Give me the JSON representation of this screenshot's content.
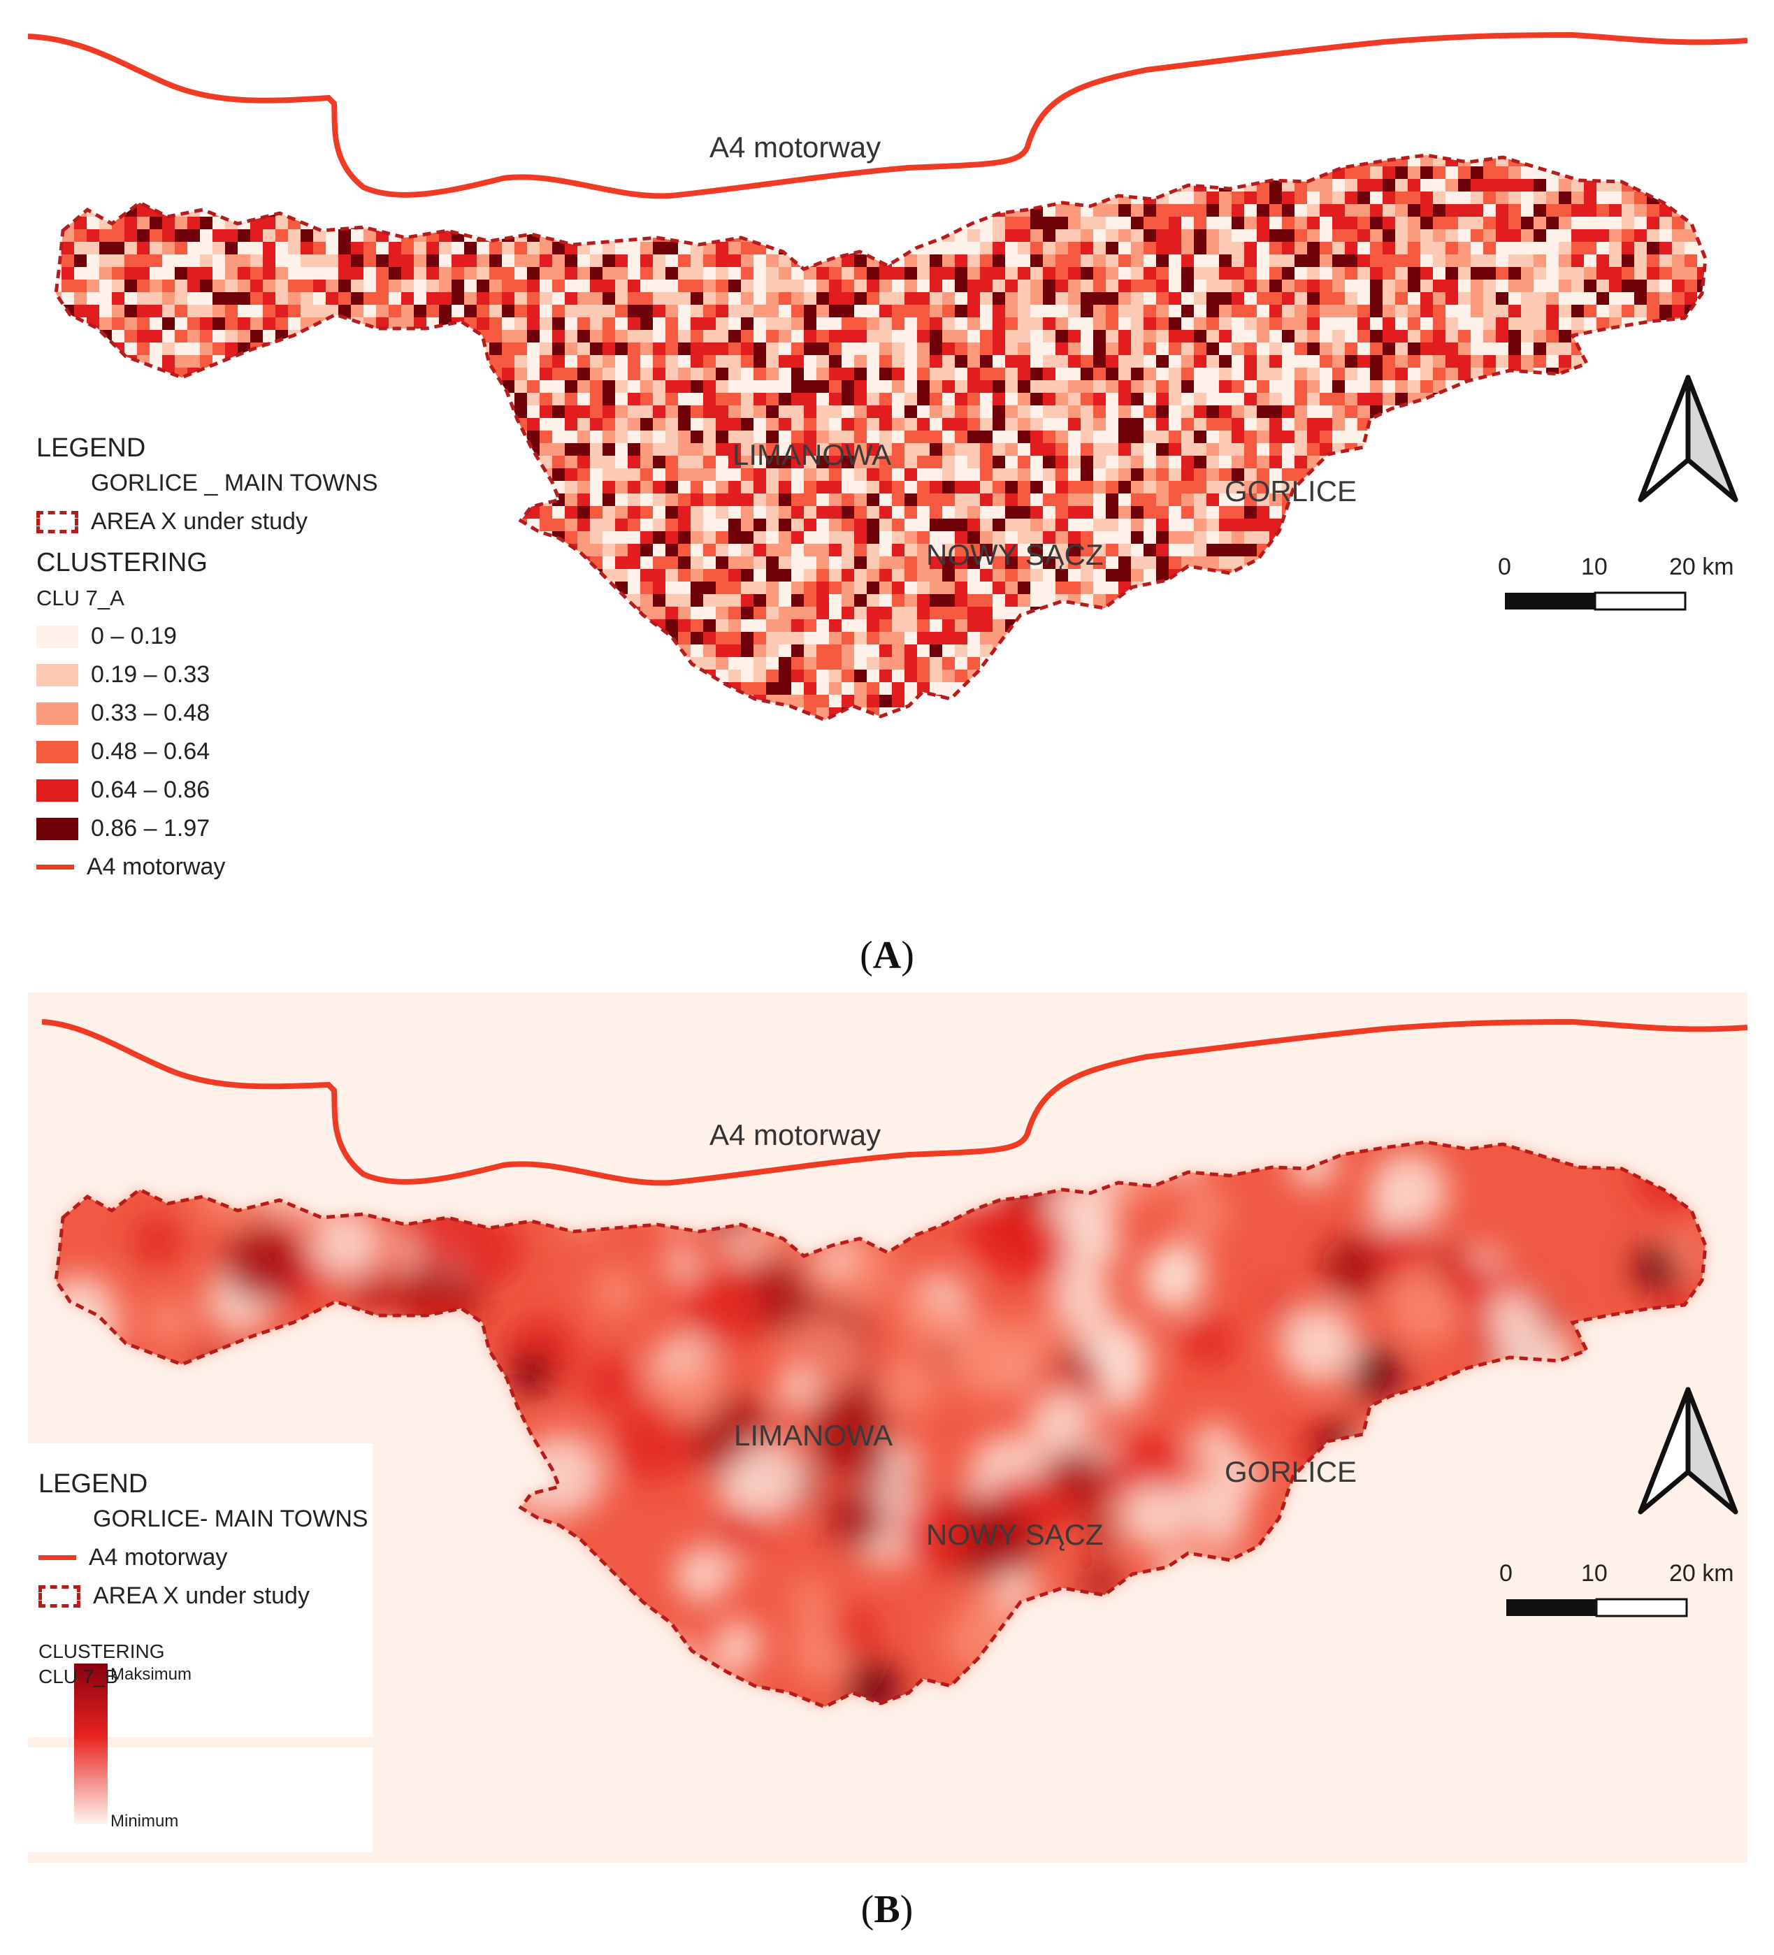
{
  "panel_a": {
    "caption_label": "A",
    "motorway_label": "A4 motorway",
    "towns": [
      "LIMANOWA",
      "NOWY SĄCZ",
      "GORLICE"
    ],
    "legend": {
      "title": "LEGEND",
      "main_towns": "GORLICE _ MAIN TOWNS",
      "area": "AREA  X under study",
      "clustering": "CLUSTERING",
      "layer": "CLU 7_A",
      "classes": [
        {
          "label": "0 – 0.19",
          "color": "#fdf1ea"
        },
        {
          "label": "0.19 – 0.33",
          "color": "#fcc9b4"
        },
        {
          "label": "0.33 – 0.48",
          "color": "#fb9a7c"
        },
        {
          "label": "0.48 – 0.64",
          "color": "#f65a41"
        },
        {
          "label": "0.64 – 0.86",
          "color": "#e21d1f"
        },
        {
          "label": "0.86 – 1.97",
          "color": "#6f0309"
        }
      ],
      "motorway": "A4 motorway"
    },
    "scale": {
      "t0": "0",
      "t1": "10",
      "t2": "20 km"
    }
  },
  "panel_b": {
    "caption_label": "B",
    "motorway_label": "A4 motorway",
    "towns": [
      "LIMANOWA",
      "NOWY SĄCZ",
      "GORLICE"
    ],
    "legend": {
      "title": "LEGEND",
      "main_towns": "GORLICE- MAIN TOWNS",
      "motorway": "A4 motorway",
      "area": "AREA X under study",
      "clustering": "CLUSTERING",
      "layer": "CLU 7_B",
      "max": "Maksimum",
      "min": "Minimum"
    },
    "scale": {
      "t0": "0",
      "t1": "10",
      "t2": "20 km"
    }
  },
  "colors": {
    "motorway": "#ef3b24",
    "boundary": "#b71c1c",
    "background_b": "#fdf1ea"
  }
}
